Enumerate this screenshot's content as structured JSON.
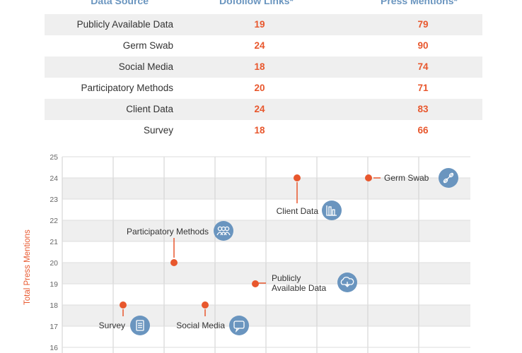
{
  "table": {
    "headers": [
      "Data Source",
      "Dofollow Links*",
      "Press Mentions*"
    ],
    "rows": [
      {
        "source": "Publicly Available Data",
        "links": 19,
        "press": 79
      },
      {
        "source": "Germ Swab",
        "links": 24,
        "press": 90
      },
      {
        "source": "Social Media",
        "links": 18,
        "press": 74
      },
      {
        "source": "Participatory Methods",
        "links": 20,
        "press": 71
      },
      {
        "source": "Client Data",
        "links": 24,
        "press": 83
      },
      {
        "source": "Survey",
        "links": 18,
        "press": 66
      }
    ]
  },
  "colors": {
    "accent": "#e8572d",
    "header": "#6a95bf",
    "icon_bg": "#6a95bf",
    "band": "#efefef"
  },
  "chart_data": {
    "type": "scatter",
    "ylabel": "Total Press Mentions",
    "ylim": [
      16,
      25
    ],
    "y_ticks": [
      25,
      24,
      23,
      22,
      21,
      20,
      19,
      18,
      17,
      16
    ],
    "grid": true,
    "points": [
      {
        "name": "Survey",
        "y": 18,
        "icon": "survey-list-icon"
      },
      {
        "name": "Participatory Methods",
        "y": 20,
        "icon": "people-group-icon"
      },
      {
        "name": "Social Media",
        "y": 18,
        "icon": "chat-bubble-icon"
      },
      {
        "name": "Publicly Available Data",
        "label_lines": [
          "Publicly",
          "Available Data"
        ],
        "y": 19,
        "icon": "cloud-download-icon"
      },
      {
        "name": "Client Data",
        "y": 24,
        "icon": "bar-chart-icon"
      },
      {
        "name": "Germ Swab",
        "y": 24,
        "icon": "swab-icon"
      }
    ]
  }
}
